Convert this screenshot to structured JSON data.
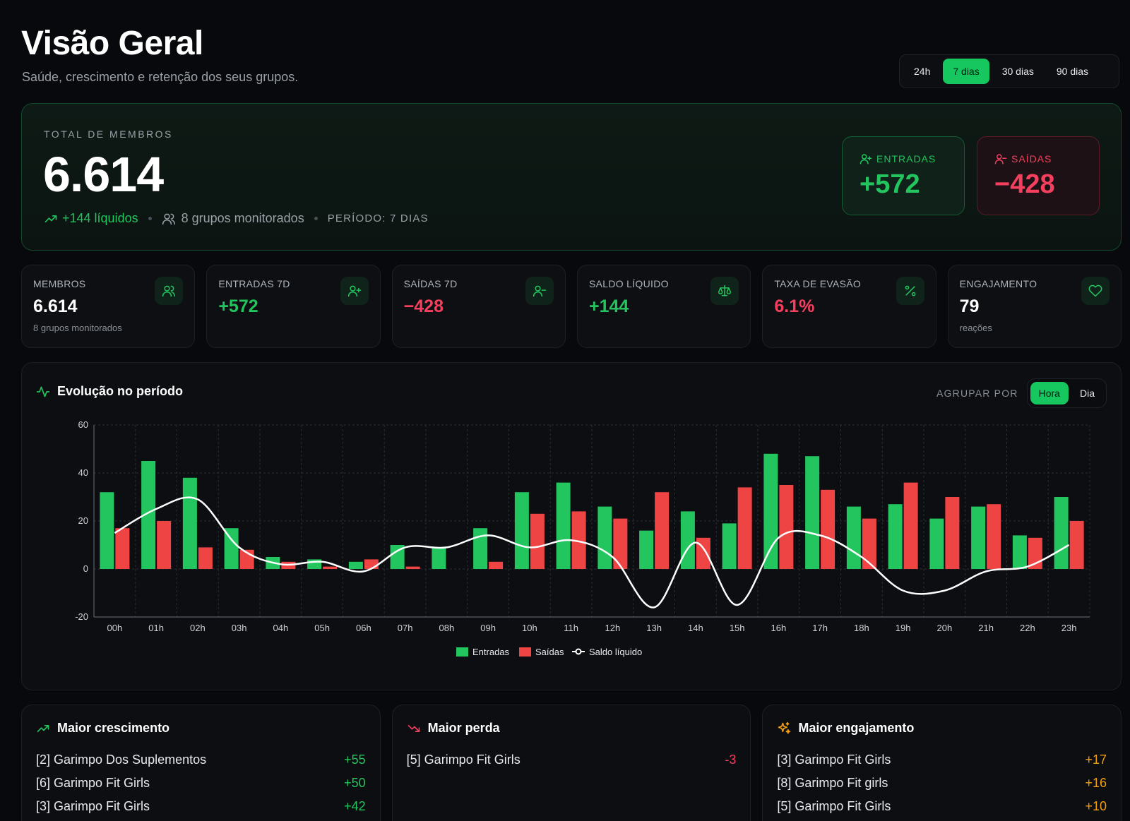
{
  "header": {
    "title": "Visão Geral",
    "subtitle": "Saúde, crescimento e retenção dos seus grupos."
  },
  "range_tabs": [
    {
      "label": "24h",
      "active": false
    },
    {
      "label": "7 dias",
      "active": true
    },
    {
      "label": "30 dias",
      "active": false
    },
    {
      "label": "90 dias",
      "active": false
    }
  ],
  "hero": {
    "label": "TOTAL DE MEMBROS",
    "value": "6.614",
    "net": "+144 líquidos",
    "groups": "8 grupos monitorados",
    "period": "PERÍODO: 7 DIAS",
    "entries_label": "ENTRADAS",
    "entries_value": "+572",
    "exits_label": "SAÍDAS",
    "exits_value": "−428"
  },
  "kpis": [
    {
      "label": "MEMBROS",
      "value": "6.614",
      "note": "8 grupos monitorados",
      "icon": "users-icon"
    },
    {
      "label": "ENTRADAS 7D",
      "value": "+572",
      "note": "",
      "icon": "user-plus-icon"
    },
    {
      "label": "SAÍDAS 7D",
      "value": "−428",
      "note": "",
      "icon": "user-minus-icon"
    },
    {
      "label": "SALDO LÍQUIDO",
      "value": "+144",
      "note": "",
      "icon": "scale-icon"
    },
    {
      "label": "TAXA DE EVASÃO",
      "value": "6.1%",
      "note": "",
      "icon": "percent-icon"
    },
    {
      "label": "ENGAJAMENTO",
      "value": "79",
      "note": "reações",
      "icon": "heart-icon"
    }
  ],
  "colors": {
    "accent": "#16c65e",
    "green": "#22c55e",
    "red": "#ef4444",
    "pink_red": "#f43f5e",
    "orange": "#f59e0b",
    "line": "#ffffff"
  },
  "chart_section": {
    "title": "Evolução no período",
    "group_by_label": "AGRUPAR POR",
    "group_tabs": [
      {
        "label": "Hora",
        "active": true
      },
      {
        "label": "Dia",
        "active": false
      }
    ]
  },
  "chart_data": {
    "type": "bar",
    "categories": [
      "00h",
      "01h",
      "02h",
      "03h",
      "04h",
      "05h",
      "06h",
      "07h",
      "08h",
      "09h",
      "10h",
      "11h",
      "12h",
      "13h",
      "14h",
      "15h",
      "16h",
      "17h",
      "18h",
      "19h",
      "20h",
      "21h",
      "22h",
      "23h"
    ],
    "series": [
      {
        "name": "Entradas",
        "type": "bar",
        "values": [
          32,
          45,
          38,
          17,
          5,
          4,
          3,
          10,
          9,
          17,
          32,
          36,
          26,
          16,
          24,
          19,
          48,
          47,
          26,
          27,
          21,
          26,
          14,
          30
        ]
      },
      {
        "name": "Saídas",
        "type": "bar",
        "values": [
          17,
          20,
          9,
          8,
          3,
          1,
          4,
          1,
          0,
          3,
          23,
          24,
          21,
          32,
          13,
          34,
          35,
          33,
          21,
          36,
          30,
          27,
          13,
          20
        ]
      },
      {
        "name": "Saldo líquido",
        "type": "line",
        "values": [
          15,
          25,
          29,
          9,
          2,
          3,
          -1,
          9,
          9,
          14,
          9,
          12,
          5,
          -16,
          11,
          -15,
          13,
          14,
          5,
          -9,
          -9,
          -1,
          1,
          10
        ]
      }
    ],
    "ylim": [
      -20,
      60
    ],
    "yticks": [
      -20,
      0,
      20,
      40,
      60
    ],
    "grid": true,
    "legend_position": "bottom"
  },
  "rankings": [
    {
      "title": "Maior crescimento",
      "icon": "trending-up-icon",
      "tone": "green",
      "items": [
        {
          "name": "[2] Garimpo Dos Suplementos",
          "value": "+55"
        },
        {
          "name": "[6] Garimpo Fit Girls",
          "value": "+50"
        },
        {
          "name": "[3] Garimpo Fit Girls",
          "value": "+42"
        }
      ]
    },
    {
      "title": "Maior perda",
      "icon": "trending-down-icon",
      "tone": "red",
      "items": [
        {
          "name": "[5] Garimpo Fit Girls",
          "value": "-3"
        }
      ]
    },
    {
      "title": "Maior engajamento",
      "icon": "sparkles-icon",
      "tone": "orange",
      "items": [
        {
          "name": "[3] Garimpo Fit Girls",
          "value": "+17"
        },
        {
          "name": "[8] Garimpo Fit girls",
          "value": "+16"
        },
        {
          "name": "[5] Garimpo Fit Girls",
          "value": "+10"
        }
      ]
    }
  ]
}
